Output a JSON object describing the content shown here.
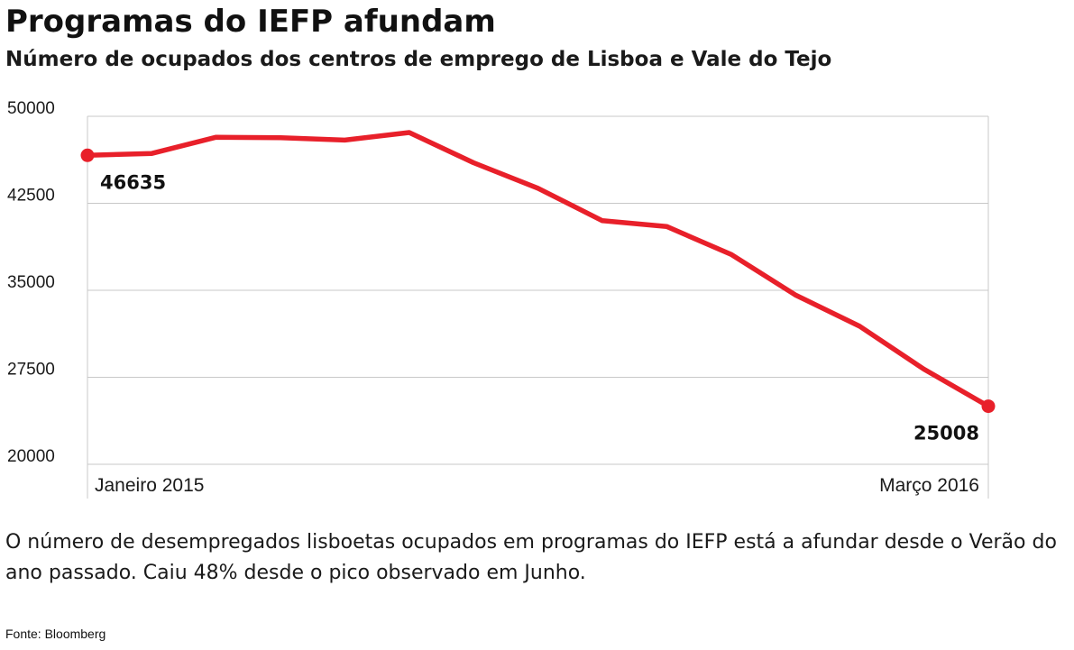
{
  "title": "Programas do IEFP afundam",
  "subtitle": "Número de ocupados dos centros de emprego de Lisboa e Vale do Tejo",
  "caption": "O número de desempregados lisboetas ocupados em programas do IEFP está a afundar desde o Verão do ano passado. Caiu 48% desde o pico observado em Junho.",
  "source": "Fonte: Bloomberg",
  "colors": {
    "line": "#e8202a",
    "grid": "#c8c8c8",
    "text": "#1a1a1a"
  },
  "chart_data": {
    "type": "line",
    "title": "Programas do IEFP afundam",
    "subtitle": "Número de ocupados dos centros de emprego de Lisboa e Vale do Tejo",
    "x": [
      "2015-01",
      "2015-02",
      "2015-03",
      "2015-04",
      "2015-05",
      "2015-06",
      "2015-07",
      "2015-08",
      "2015-09",
      "2015-10",
      "2015-11",
      "2015-12",
      "2016-01",
      "2016-02",
      "2016-03"
    ],
    "x_tick_labels": [
      "Janeiro 2015",
      "",
      "",
      "",
      "",
      "",
      "",
      "",
      "",
      "",
      "",
      "",
      "",
      "",
      "Março 2016"
    ],
    "series": [
      {
        "name": "",
        "values": [
          46635,
          46800,
          48200,
          48150,
          47950,
          48600,
          46000,
          43800,
          41000,
          40500,
          38100,
          34600,
          31900,
          28200,
          25008
        ]
      }
    ],
    "data_labels": [
      {
        "index": 0,
        "text": "46635"
      },
      {
        "index": 14,
        "text": "25008"
      }
    ],
    "yticks": [
      20000,
      27500,
      35000,
      42500,
      50000
    ],
    "ylim": [
      20000,
      50000
    ],
    "grid": true,
    "legend": "none",
    "xlabel": "",
    "ylabel": ""
  }
}
